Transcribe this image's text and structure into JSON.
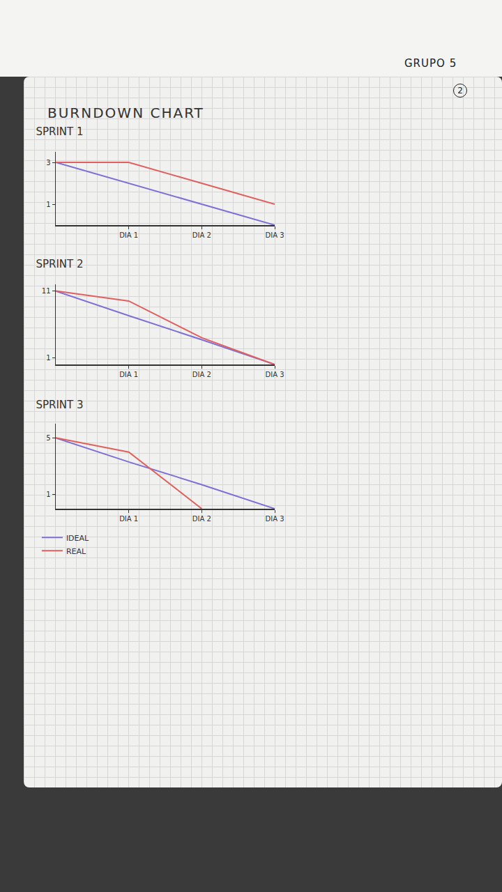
{
  "header": {
    "group": "GRUPO 5",
    "page": 2,
    "title": "BURNDOWN CHART"
  },
  "chart_data": [
    {
      "type": "line",
      "title": "SPRINT 1",
      "categories": [
        null,
        "DIA 1",
        "DIA 2",
        "DIA 3"
      ],
      "series": [
        {
          "name": "IDEAL",
          "color": "#7d6fd6",
          "values": [
            3,
            2,
            1,
            0
          ]
        },
        {
          "name": "REAL",
          "color": "#e0605e",
          "values": [
            3,
            3,
            2,
            1
          ]
        }
      ],
      "ylim": [
        0,
        3.5
      ],
      "yticks": [
        1,
        3
      ]
    },
    {
      "type": "line",
      "title": "SPRINT 2",
      "categories": [
        null,
        "DIA 1",
        "DIA 2",
        "DIA 3"
      ],
      "series": [
        {
          "name": "IDEAL",
          "color": "#7d6fd6",
          "values": [
            11,
            7.3,
            3.7,
            0
          ]
        },
        {
          "name": "REAL",
          "color": "#e0605e",
          "values": [
            11,
            9.5,
            4,
            0
          ]
        }
      ],
      "ylim": [
        0,
        12
      ],
      "yticks": [
        1,
        11
      ]
    },
    {
      "type": "line",
      "title": "SPRINT 3",
      "categories": [
        null,
        "DIA 1",
        "DIA 2",
        "DIA 3"
      ],
      "series": [
        {
          "name": "IDEAL",
          "color": "#7d6fd6",
          "values": [
            5,
            3.3,
            1.7,
            0
          ]
        },
        {
          "name": "REAL",
          "color": "#e0605e",
          "values": [
            5,
            4,
            0,
            null
          ]
        }
      ],
      "ylim": [
        0,
        6
      ],
      "yticks": [
        1,
        5
      ],
      "legend": "bottom left"
    }
  ]
}
